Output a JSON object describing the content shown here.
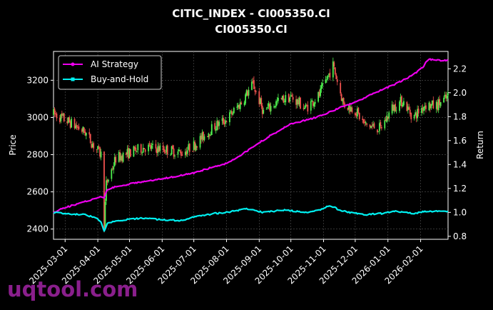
{
  "chart_data": {
    "type": "line",
    "title": "CITIC_INDEX - CI005350.CI",
    "subtitle": "CI005350.CI",
    "ylabel_left": "Price",
    "ylabel_right": "Return",
    "xlim": [
      "2025-02-18",
      "2026-02-27"
    ],
    "ylim_left": [
      2345,
      3355
    ],
    "ylim_right": [
      0.775,
      2.345
    ],
    "x_ticks": [
      "2025-03-01",
      "2025-04-01",
      "2025-05-01",
      "2025-06-01",
      "2025-07-01",
      "2025-08-01",
      "2025-09-01",
      "2025-10-01",
      "2025-11-01",
      "2025-12-01",
      "2026-01-01",
      "2026-02-01"
    ],
    "y_ticks_left": [
      2400,
      2600,
      2800,
      3000,
      3200
    ],
    "y_ticks_right": [
      0.8,
      1.0,
      1.2,
      1.4,
      1.6,
      1.8,
      2.0,
      2.2
    ],
    "grid": true,
    "legend": {
      "position": "top-left",
      "entries": [
        "AI Strategy",
        "Buy-and-Hold"
      ]
    },
    "colors": {
      "up": "#4ef04e",
      "down": "#f0524e",
      "ai": "#ee00ee",
      "bh": "#00f0f0",
      "background": "#000000"
    },
    "price_anchors": [
      [
        "2025-02-18",
        3020
      ],
      [
        "2025-03-05",
        2975
      ],
      [
        "2025-03-20",
        2920
      ],
      [
        "2025-03-28",
        2850
      ],
      [
        "2025-04-04",
        2800
      ],
      [
        "2025-04-07",
        2430
      ],
      [
        "2025-04-09",
        2640
      ],
      [
        "2025-04-18",
        2780
      ],
      [
        "2025-05-01",
        2810
      ],
      [
        "2025-05-15",
        2840
      ],
      [
        "2025-06-01",
        2830
      ],
      [
        "2025-06-20",
        2810
      ],
      [
        "2025-07-01",
        2850
      ],
      [
        "2025-07-20",
        2950
      ],
      [
        "2025-08-01",
        2990
      ],
      [
        "2025-08-15",
        3080
      ],
      [
        "2025-08-26",
        3180
      ],
      [
        "2025-09-05",
        3030
      ],
      [
        "2025-09-20",
        3090
      ],
      [
        "2025-10-01",
        3110
      ],
      [
        "2025-10-15",
        3050
      ],
      [
        "2025-10-28",
        3120
      ],
      [
        "2025-11-05",
        3220
      ],
      [
        "2025-11-10",
        3280
      ],
      [
        "2025-11-20",
        3070
      ],
      [
        "2025-12-01",
        3040
      ],
      [
        "2025-12-10",
        2960
      ],
      [
        "2025-12-25",
        2940
      ],
      [
        "2026-01-05",
        3050
      ],
      [
        "2026-01-15",
        3090
      ],
      [
        "2026-01-25",
        3000
      ],
      [
        "2026-02-05",
        3070
      ],
      [
        "2026-02-15",
        3060
      ],
      [
        "2026-02-27",
        3110
      ]
    ],
    "series": [
      {
        "name": "AI Strategy",
        "points": [
          [
            "2025-02-18",
            1.0
          ],
          [
            "2025-03-01",
            1.04
          ],
          [
            "2025-03-20",
            1.09
          ],
          [
            "2025-04-04",
            1.13
          ],
          [
            "2025-04-07",
            1.12
          ],
          [
            "2025-04-10",
            1.19
          ],
          [
            "2025-04-20",
            1.22
          ],
          [
            "2025-05-10",
            1.25
          ],
          [
            "2025-06-01",
            1.28
          ],
          [
            "2025-07-01",
            1.33
          ],
          [
            "2025-07-20",
            1.38
          ],
          [
            "2025-08-01",
            1.41
          ],
          [
            "2025-08-15",
            1.48
          ],
          [
            "2025-08-28",
            1.56
          ],
          [
            "2025-09-15",
            1.66
          ],
          [
            "2025-10-01",
            1.74
          ],
          [
            "2025-10-20",
            1.78
          ],
          [
            "2025-11-05",
            1.83
          ],
          [
            "2025-11-15",
            1.87
          ],
          [
            "2025-12-01",
            1.92
          ],
          [
            "2025-12-20",
            2.0
          ],
          [
            "2026-01-10",
            2.08
          ],
          [
            "2026-01-25",
            2.15
          ],
          [
            "2026-02-03",
            2.21
          ],
          [
            "2026-02-08",
            2.28
          ],
          [
            "2026-02-15",
            2.27
          ],
          [
            "2026-02-27",
            2.27
          ]
        ]
      },
      {
        "name": "Buy-and-Hold",
        "points": [
          [
            "2025-02-18",
            1.0
          ],
          [
            "2025-03-01",
            0.99
          ],
          [
            "2025-03-20",
            0.98
          ],
          [
            "2025-03-31",
            0.95
          ],
          [
            "2025-04-04",
            0.92
          ],
          [
            "2025-04-07",
            0.84
          ],
          [
            "2025-04-10",
            0.91
          ],
          [
            "2025-04-20",
            0.93
          ],
          [
            "2025-05-10",
            0.95
          ],
          [
            "2025-06-01",
            0.94
          ],
          [
            "2025-06-20",
            0.93
          ],
          [
            "2025-07-01",
            0.96
          ],
          [
            "2025-07-20",
            0.99
          ],
          [
            "2025-08-01",
            1.0
          ],
          [
            "2025-08-20",
            1.03
          ],
          [
            "2025-09-05",
            1.0
          ],
          [
            "2025-09-25",
            1.02
          ],
          [
            "2025-10-15",
            1.0
          ],
          [
            "2025-10-28",
            1.02
          ],
          [
            "2025-11-08",
            1.06
          ],
          [
            "2025-11-15",
            1.02
          ],
          [
            "2025-11-25",
            1.0
          ],
          [
            "2025-12-10",
            0.98
          ],
          [
            "2025-12-25",
            0.99
          ],
          [
            "2026-01-10",
            1.01
          ],
          [
            "2026-01-25",
            0.99
          ],
          [
            "2026-02-05",
            1.01
          ],
          [
            "2026-02-27",
            1.01
          ]
        ]
      }
    ]
  },
  "watermark": "uqtool.com"
}
